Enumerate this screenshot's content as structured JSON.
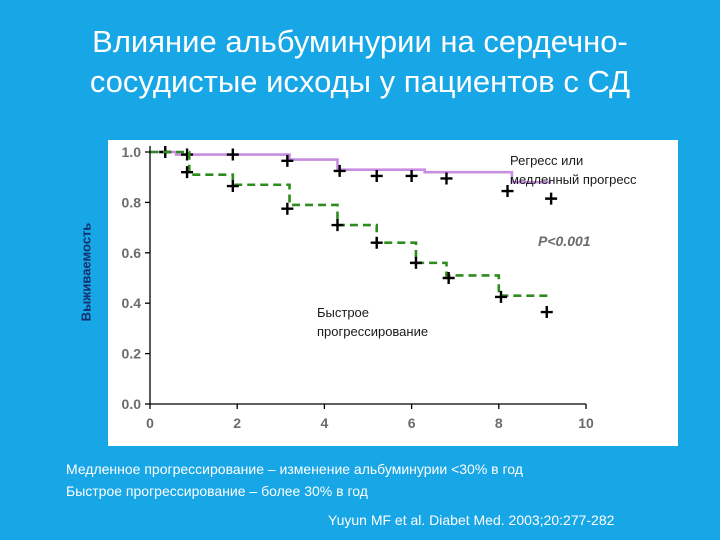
{
  "slide": {
    "title_line1": "Влияние альбуминурии на сердечно-",
    "title_line2": "сосудистые исходы у пациентов с СД",
    "footnote_line1": "Медленное прогрессирование – изменение альбуминурии <30% в год",
    "footnote_line2": "Быстрое прогрессирование – более 30% в год",
    "citation": "Yuyun MF et al. Diabet Med. 2003;20:277-282"
  },
  "chart_data": {
    "type": "line",
    "title": "",
    "xlabel": "",
    "ylabel": "Выживаемость",
    "xlim": [
      0,
      10
    ],
    "ylim": [
      0,
      1.0
    ],
    "x_ticks": [
      0,
      2,
      4,
      6,
      8,
      10
    ],
    "x_tick_labels": [
      "0",
      "2",
      "4",
      "6",
      "8",
      "10"
    ],
    "y_ticks": [
      0,
      0.2,
      0.4,
      0.6,
      0.8,
      1.0
    ],
    "y_tick_labels": [
      "0.0",
      "0.2",
      "0.4",
      "0.6",
      "0.8",
      "1.0"
    ],
    "grid": false,
    "annotation": "P<0.001",
    "series": [
      {
        "name_line1": "Регресс или",
        "name_line2": "медленный прогресс",
        "color": "#c88ee0",
        "style": "solid",
        "steps": [
          [
            0,
            1.0
          ],
          [
            0.6,
            0.99
          ],
          [
            3.2,
            0.97
          ],
          [
            4.3,
            0.93
          ],
          [
            6.3,
            0.92
          ],
          [
            8.3,
            0.88
          ],
          [
            9.2,
            0.88
          ]
        ],
        "censored": [
          [
            0.35,
            1.0
          ],
          [
            0.85,
            0.99
          ],
          [
            1.9,
            0.99
          ],
          [
            3.15,
            0.965
          ],
          [
            4.35,
            0.925
          ],
          [
            5.2,
            0.905
          ],
          [
            6.0,
            0.905
          ],
          [
            6.8,
            0.895
          ],
          [
            8.2,
            0.845
          ],
          [
            9.2,
            0.815
          ]
        ]
      },
      {
        "name_line1": "Быстрое",
        "name_line2": "прогрессирование",
        "color": "#2e8b1e",
        "style": "dashed",
        "steps": [
          [
            0,
            1.0
          ],
          [
            0.9,
            0.91
          ],
          [
            1.9,
            0.87
          ],
          [
            3.2,
            0.79
          ],
          [
            4.3,
            0.71
          ],
          [
            5.2,
            0.64
          ],
          [
            6.1,
            0.56
          ],
          [
            6.8,
            0.51
          ],
          [
            8.0,
            0.43
          ],
          [
            9.2,
            0.43
          ]
        ],
        "censored": [
          [
            0.85,
            0.92
          ],
          [
            1.9,
            0.865
          ],
          [
            3.15,
            0.775
          ],
          [
            4.3,
            0.71
          ],
          [
            5.2,
            0.64
          ],
          [
            6.1,
            0.56
          ],
          [
            6.85,
            0.5
          ],
          [
            8.05,
            0.425
          ],
          [
            9.1,
            0.365
          ]
        ]
      }
    ]
  }
}
